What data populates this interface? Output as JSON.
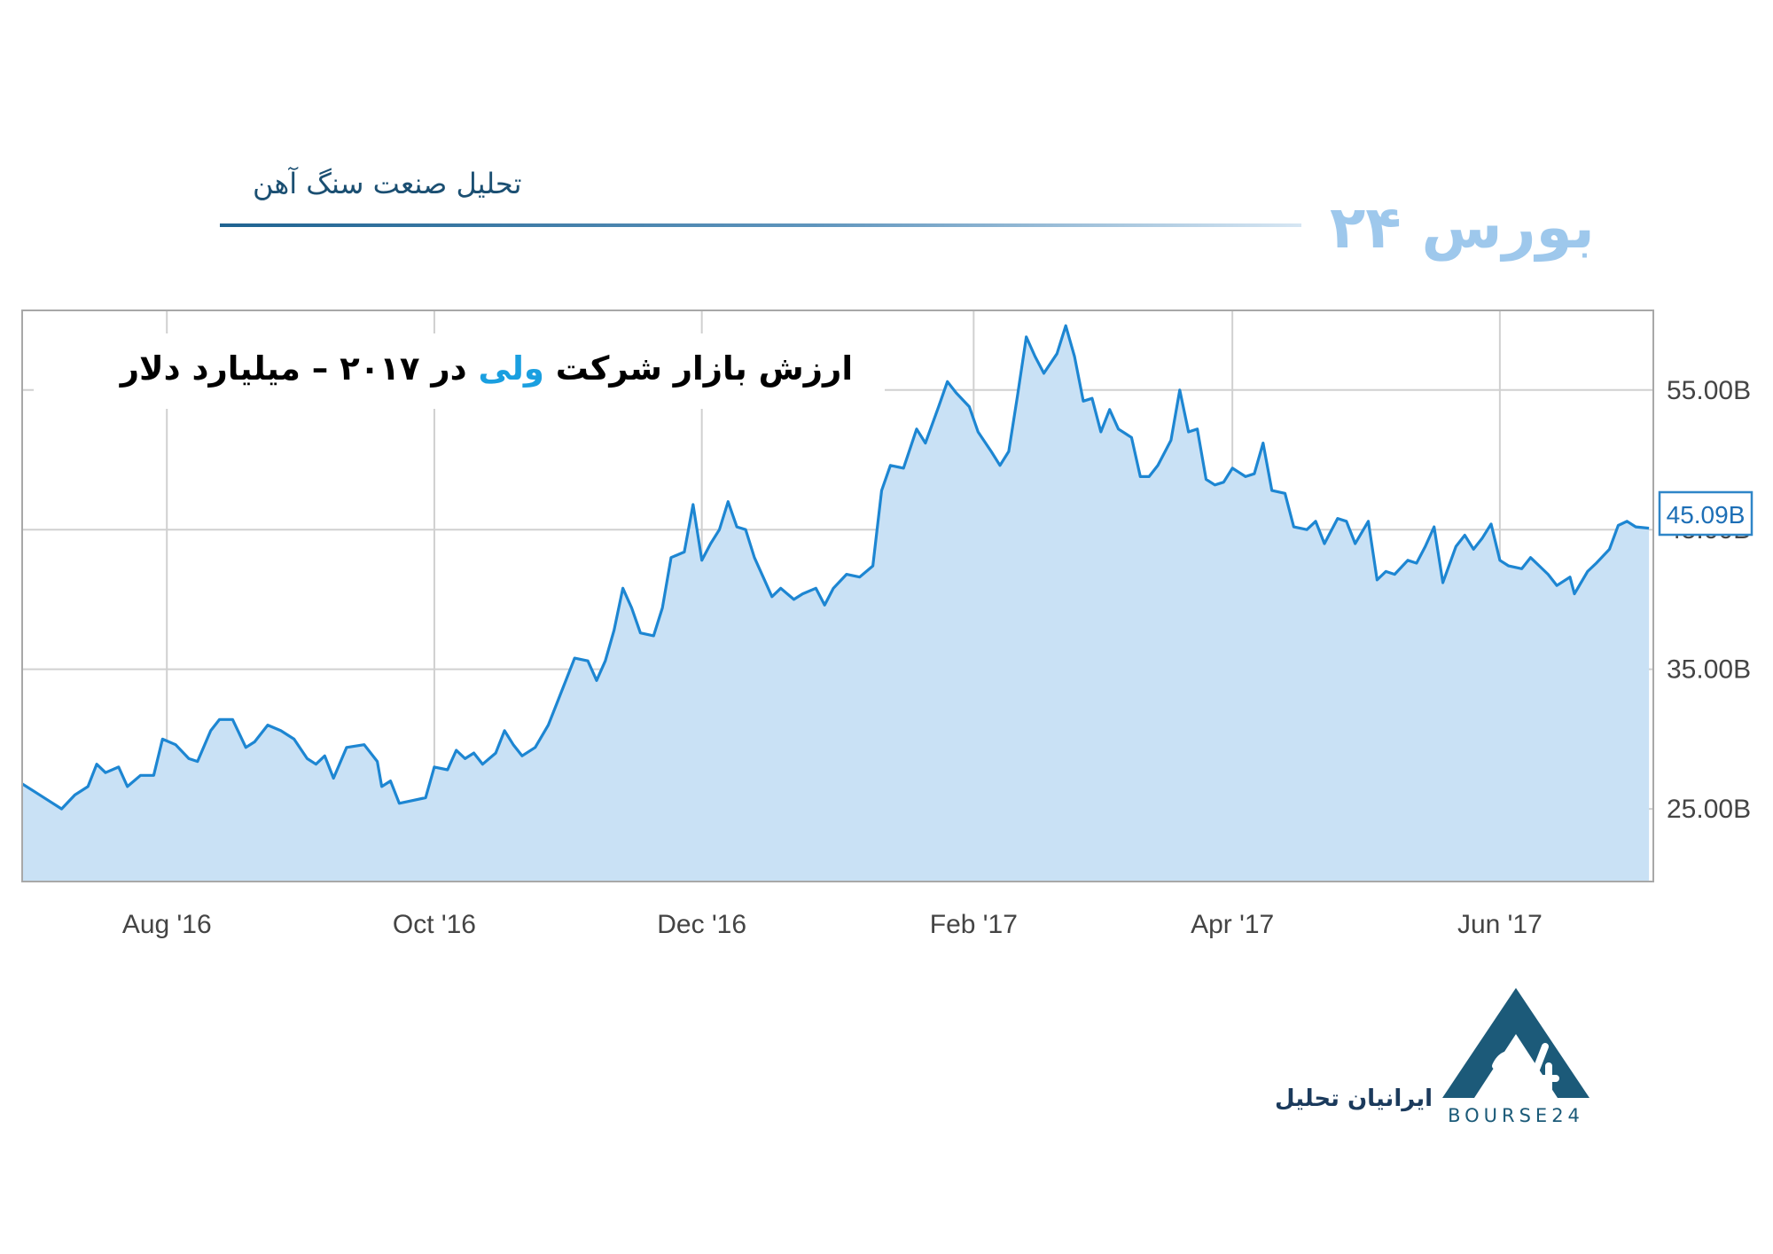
{
  "header": {
    "title": "تحلیل صنعت سنگ آهن",
    "brand": "بورس ۲۴"
  },
  "footer": {
    "company": "ایرانیان تحلیل",
    "logo_text": "BOURSE24"
  },
  "colors": {
    "line": "#1d86d2",
    "fill": "#c9e1f5",
    "grid": "#d0d0d0",
    "highlight": "#1a9fe0",
    "header": "#1b4f72"
  },
  "chart_data": {
    "type": "area",
    "title_parts": [
      "ارزش بازار شرکت ",
      "ولی",
      " در ۲۰۱۷ – میلیارد دلار"
    ],
    "x_tick_labels": [
      "Aug '16",
      "Oct '16",
      "Dec '16",
      "Feb '17",
      "Apr '17",
      "Jun '17"
    ],
    "x_tick_dates": [
      "2016-08-01",
      "2016-10-01",
      "2016-12-01",
      "2017-02-01",
      "2017-04-01",
      "2017-06-01"
    ],
    "x_range": [
      "2016-06-29",
      "2017-07-06"
    ],
    "y_ticks": [
      25,
      35,
      45,
      55
    ],
    "y_tick_labels": [
      "25.00B",
      "35.00B",
      "45.00B",
      "55.00B"
    ],
    "ylim": [
      19.8,
      60.7
    ],
    "current_value_label": "45.09B",
    "current_value": 45.09,
    "grid": true,
    "series": [
      {
        "values_unit": "billion USD",
        "points": [
          [
            "2016-06-29",
            26.8
          ],
          [
            "2016-07-02",
            26.2
          ],
          [
            "2016-07-05",
            25.6
          ],
          [
            "2016-07-08",
            25.0
          ],
          [
            "2016-07-11",
            26.0
          ],
          [
            "2016-07-14",
            26.6
          ],
          [
            "2016-07-16",
            28.2
          ],
          [
            "2016-07-18",
            27.6
          ],
          [
            "2016-07-21",
            28.0
          ],
          [
            "2016-07-23",
            26.6
          ],
          [
            "2016-07-26",
            27.4
          ],
          [
            "2016-07-29",
            27.4
          ],
          [
            "2016-07-31",
            30.0
          ],
          [
            "2016-08-03",
            29.6
          ],
          [
            "2016-08-06",
            28.6
          ],
          [
            "2016-08-08",
            28.4
          ],
          [
            "2016-08-11",
            30.6
          ],
          [
            "2016-08-13",
            31.4
          ],
          [
            "2016-08-16",
            31.4
          ],
          [
            "2016-08-19",
            29.4
          ],
          [
            "2016-08-21",
            29.8
          ],
          [
            "2016-08-24",
            31.0
          ],
          [
            "2016-08-27",
            30.6
          ],
          [
            "2016-08-30",
            30.0
          ],
          [
            "2016-09-02",
            28.6
          ],
          [
            "2016-09-04",
            28.2
          ],
          [
            "2016-09-06",
            28.8
          ],
          [
            "2016-09-08",
            27.2
          ],
          [
            "2016-09-11",
            29.4
          ],
          [
            "2016-09-15",
            29.6
          ],
          [
            "2016-09-18",
            28.4
          ],
          [
            "2016-09-19",
            26.6
          ],
          [
            "2016-09-21",
            27.0
          ],
          [
            "2016-09-23",
            25.4
          ],
          [
            "2016-09-26",
            25.6
          ],
          [
            "2016-09-29",
            25.8
          ],
          [
            "2016-10-01",
            28.0
          ],
          [
            "2016-10-04",
            27.8
          ],
          [
            "2016-10-06",
            29.2
          ],
          [
            "2016-10-08",
            28.6
          ],
          [
            "2016-10-10",
            29.0
          ],
          [
            "2016-10-12",
            28.2
          ],
          [
            "2016-10-15",
            29.0
          ],
          [
            "2016-10-17",
            30.6
          ],
          [
            "2016-10-19",
            29.6
          ],
          [
            "2016-10-21",
            28.8
          ],
          [
            "2016-10-24",
            29.4
          ],
          [
            "2016-10-27",
            31.0
          ],
          [
            "2016-10-29",
            32.6
          ],
          [
            "2016-10-31",
            34.2
          ],
          [
            "2016-11-02",
            35.8
          ],
          [
            "2016-11-05",
            35.6
          ],
          [
            "2016-11-07",
            34.2
          ],
          [
            "2016-11-09",
            35.6
          ],
          [
            "2016-11-11",
            37.8
          ],
          [
            "2016-11-13",
            40.8
          ],
          [
            "2016-11-15",
            39.4
          ],
          [
            "2016-11-17",
            37.6
          ],
          [
            "2016-11-20",
            37.4
          ],
          [
            "2016-11-22",
            39.4
          ],
          [
            "2016-11-24",
            43.0
          ],
          [
            "2016-11-27",
            43.4
          ],
          [
            "2016-11-29",
            46.8
          ],
          [
            "2016-12-01",
            42.8
          ],
          [
            "2016-12-03",
            44.0
          ],
          [
            "2016-12-05",
            45.0
          ],
          [
            "2016-12-07",
            47.0
          ],
          [
            "2016-12-09",
            45.2
          ],
          [
            "2016-12-11",
            45.0
          ],
          [
            "2016-12-13",
            43.0
          ],
          [
            "2016-12-15",
            41.6
          ],
          [
            "2016-12-17",
            40.2
          ],
          [
            "2016-12-19",
            40.8
          ],
          [
            "2016-12-22",
            40.0
          ],
          [
            "2016-12-24",
            40.4
          ],
          [
            "2016-12-27",
            40.8
          ],
          [
            "2016-12-29",
            39.6
          ],
          [
            "2016-12-31",
            40.8
          ],
          [
            "2017-01-03",
            41.8
          ],
          [
            "2017-01-06",
            41.6
          ],
          [
            "2017-01-09",
            42.4
          ],
          [
            "2017-01-11",
            47.8
          ],
          [
            "2017-01-13",
            49.6
          ],
          [
            "2017-01-16",
            49.4
          ],
          [
            "2017-01-19",
            52.2
          ],
          [
            "2017-01-21",
            51.2
          ],
          [
            "2017-01-24",
            53.8
          ],
          [
            "2017-01-26",
            55.6
          ],
          [
            "2017-01-28",
            54.8
          ],
          [
            "2017-01-31",
            53.8
          ],
          [
            "2017-02-02",
            52.0
          ],
          [
            "2017-02-05",
            50.6
          ],
          [
            "2017-02-07",
            49.6
          ],
          [
            "2017-02-09",
            50.6
          ],
          [
            "2017-02-11",
            54.6
          ],
          [
            "2017-02-13",
            58.8
          ],
          [
            "2017-02-15",
            57.4
          ],
          [
            "2017-02-17",
            56.2
          ],
          [
            "2017-02-20",
            57.6
          ],
          [
            "2017-02-22",
            59.6
          ],
          [
            "2017-02-24",
            57.4
          ],
          [
            "2017-02-26",
            54.2
          ],
          [
            "2017-02-28",
            54.4
          ],
          [
            "2017-03-02",
            52.0
          ],
          [
            "2017-03-04",
            53.6
          ],
          [
            "2017-03-06",
            52.2
          ],
          [
            "2017-03-09",
            51.6
          ],
          [
            "2017-03-11",
            48.8
          ],
          [
            "2017-03-13",
            48.8
          ],
          [
            "2017-03-15",
            49.6
          ],
          [
            "2017-03-18",
            51.4
          ],
          [
            "2017-03-20",
            55.0
          ],
          [
            "2017-03-22",
            52.0
          ],
          [
            "2017-03-24",
            52.2
          ],
          [
            "2017-03-26",
            48.6
          ],
          [
            "2017-03-28",
            48.2
          ],
          [
            "2017-03-30",
            48.4
          ],
          [
            "2017-04-01",
            49.4
          ],
          [
            "2017-04-04",
            48.8
          ],
          [
            "2017-04-06",
            49.0
          ],
          [
            "2017-04-08",
            51.2
          ],
          [
            "2017-04-10",
            47.8
          ],
          [
            "2017-04-13",
            47.6
          ],
          [
            "2017-04-15",
            45.2
          ],
          [
            "2017-04-18",
            45.0
          ],
          [
            "2017-04-20",
            45.6
          ],
          [
            "2017-04-22",
            44.0
          ],
          [
            "2017-04-25",
            45.8
          ],
          [
            "2017-04-27",
            45.6
          ],
          [
            "2017-04-29",
            44.0
          ],
          [
            "2017-05-02",
            45.6
          ],
          [
            "2017-05-04",
            41.4
          ],
          [
            "2017-05-06",
            42.0
          ],
          [
            "2017-05-08",
            41.8
          ],
          [
            "2017-05-11",
            42.8
          ],
          [
            "2017-05-13",
            42.6
          ],
          [
            "2017-05-15",
            43.8
          ],
          [
            "2017-05-17",
            45.2
          ],
          [
            "2017-05-19",
            41.2
          ],
          [
            "2017-05-22",
            43.8
          ],
          [
            "2017-05-24",
            44.6
          ],
          [
            "2017-05-26",
            43.6
          ],
          [
            "2017-05-28",
            44.4
          ],
          [
            "2017-05-30",
            45.4
          ],
          [
            "2017-06-01",
            42.8
          ],
          [
            "2017-06-03",
            42.4
          ],
          [
            "2017-06-06",
            42.2
          ],
          [
            "2017-06-08",
            43.0
          ],
          [
            "2017-06-10",
            42.4
          ],
          [
            "2017-06-12",
            41.8
          ],
          [
            "2017-06-14",
            41.0
          ],
          [
            "2017-06-17",
            41.6
          ],
          [
            "2017-06-18",
            40.4
          ],
          [
            "2017-06-21",
            42.0
          ],
          [
            "2017-06-23",
            42.6
          ],
          [
            "2017-06-26",
            43.6
          ],
          [
            "2017-06-28",
            45.3
          ],
          [
            "2017-06-30",
            45.6
          ],
          [
            "2017-07-02",
            45.2
          ],
          [
            "2017-07-05",
            45.1
          ]
        ]
      }
    ]
  }
}
